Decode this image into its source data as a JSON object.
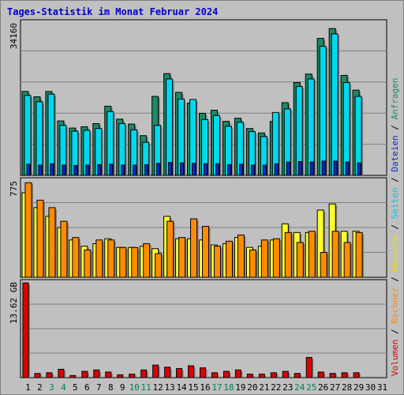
{
  "title": "Tages-Statistik im Monat Februar 2024",
  "colors": {
    "background": "#c0c0c0",
    "title": "#0000cc",
    "anfragen": "#1d8a66",
    "dateien": "#00d8f0",
    "seiten": "#0a2ad0",
    "besuche": "#ffff33",
    "rechner": "#ff8c00",
    "volumen": "#dd0000"
  },
  "right_legend": {
    "items": [
      {
        "label": "Volumen",
        "color": "#dd0000"
      },
      {
        "label": "Rechner",
        "color": "#ff8c00"
      },
      {
        "label": "Besuche",
        "color": "#e8e000"
      },
      {
        "label": "Seiten",
        "color": "#00c8e8"
      },
      {
        "label": "Dateien",
        "color": "#0a2ad0"
      },
      {
        "label": "Anfragen",
        "color": "#1d8a66"
      }
    ],
    "separator": "/"
  },
  "chart_data": [
    {
      "type": "bar",
      "name": "requests-panel",
      "ymax_label": "34160",
      "ylim": [
        0,
        34160
      ],
      "categories": [
        "1",
        "2",
        "3",
        "4",
        "5",
        "6",
        "7",
        "8",
        "9",
        "10",
        "11",
        "12",
        "13",
        "14",
        "15",
        "16",
        "17",
        "18",
        "19",
        "20",
        "21",
        "22",
        "23",
        "24",
        "25",
        "26",
        "27",
        "28",
        "29",
        "30",
        "31"
      ],
      "series": [
        {
          "name": "Anfragen",
          "values": [
            18800,
            17600,
            18800,
            12200,
            10600,
            10900,
            11600,
            15500,
            12600,
            11500,
            8900,
            17700,
            22800,
            18600,
            16200,
            13900,
            14600,
            12100,
            12800,
            10500,
            9500,
            12100,
            16300,
            20800,
            22700,
            30700,
            32900,
            22400,
            19100,
            0,
            0
          ]
        },
        {
          "name": "Dateien",
          "values": [
            17900,
            16500,
            18200,
            11200,
            9900,
            10100,
            10500,
            14300,
            11600,
            10200,
            7400,
            11200,
            21600,
            17100,
            17000,
            12500,
            13400,
            11000,
            11900,
            9800,
            8700,
            14100,
            14900,
            19900,
            21600,
            28900,
            31700,
            20800,
            17700,
            0,
            0
          ]
        },
        {
          "name": "Seiten",
          "values": [
            2500,
            2300,
            2600,
            2300,
            2200,
            2300,
            2400,
            2500,
            2300,
            2300,
            2400,
            2700,
            2900,
            2800,
            2700,
            2600,
            2600,
            2400,
            2500,
            2300,
            2300,
            2600,
            3000,
            3100,
            3000,
            3200,
            3200,
            3000,
            2800,
            0,
            0
          ]
        }
      ]
    },
    {
      "type": "bar",
      "name": "visits-panel",
      "ymax_label": "775",
      "ylim": [
        0,
        775
      ],
      "categories": [
        "1",
        "2",
        "3",
        "4",
        "5",
        "6",
        "7",
        "8",
        "9",
        "10",
        "11",
        "12",
        "13",
        "14",
        "15",
        "16",
        "17",
        "18",
        "19",
        "20",
        "21",
        "22",
        "23",
        "24",
        "25",
        "26",
        "27",
        "28",
        "29",
        "30",
        "31"
      ],
      "series": [
        {
          "name": "Besuche",
          "values": [
            680,
            560,
            490,
            400,
            300,
            250,
            270,
            310,
            240,
            240,
            250,
            230,
            490,
            310,
            310,
            300,
            260,
            270,
            320,
            240,
            250,
            300,
            430,
            360,
            360,
            540,
            590,
            370,
            370,
            0,
            0
          ]
        },
        {
          "name": "Rechner",
          "values": [
            760,
            620,
            560,
            450,
            320,
            220,
            300,
            300,
            240,
            240,
            270,
            190,
            450,
            320,
            470,
            410,
            250,
            290,
            340,
            220,
            300,
            310,
            360,
            280,
            370,
            200,
            370,
            280,
            360,
            0,
            0
          ]
        }
      ]
    },
    {
      "type": "bar",
      "name": "volume-panel",
      "ymax_label": "13.62 GB",
      "ylim": [
        0,
        13.62
      ],
      "categories": [
        "1",
        "2",
        "3",
        "4",
        "5",
        "6",
        "7",
        "8",
        "9",
        "10",
        "11",
        "12",
        "13",
        "14",
        "15",
        "16",
        "17",
        "18",
        "19",
        "20",
        "21",
        "22",
        "23",
        "24",
        "25",
        "26",
        "27",
        "28",
        "29",
        "30",
        "31"
      ],
      "series": [
        {
          "name": "Volumen",
          "values": [
            13.62,
            0.6,
            0.7,
            1.2,
            0.3,
            0.9,
            1.1,
            0.8,
            0.4,
            0.5,
            1.1,
            1.8,
            1.5,
            1.3,
            1.7,
            1.4,
            0.7,
            0.9,
            1.1,
            0.5,
            0.5,
            0.7,
            0.9,
            0.6,
            2.9,
            0.8,
            0.6,
            0.7,
            0.7,
            0,
            0
          ]
        }
      ]
    }
  ],
  "x_labels": [
    {
      "text": "1",
      "weekend": false
    },
    {
      "text": "2",
      "weekend": false
    },
    {
      "text": "3",
      "weekend": true
    },
    {
      "text": "4",
      "weekend": true
    },
    {
      "text": "5",
      "weekend": false
    },
    {
      "text": "6",
      "weekend": false
    },
    {
      "text": "7",
      "weekend": false
    },
    {
      "text": "8",
      "weekend": false
    },
    {
      "text": "9",
      "weekend": false
    },
    {
      "text": "10",
      "weekend": true
    },
    {
      "text": "11",
      "weekend": true
    },
    {
      "text": "12",
      "weekend": false
    },
    {
      "text": "13",
      "weekend": false
    },
    {
      "text": "14",
      "weekend": false
    },
    {
      "text": "15",
      "weekend": false
    },
    {
      "text": "16",
      "weekend": false
    },
    {
      "text": "17",
      "weekend": true
    },
    {
      "text": "18",
      "weekend": true
    },
    {
      "text": "19",
      "weekend": false
    },
    {
      "text": "20",
      "weekend": false
    },
    {
      "text": "21",
      "weekend": false
    },
    {
      "text": "22",
      "weekend": false
    },
    {
      "text": "23",
      "weekend": false
    },
    {
      "text": "24",
      "weekend": true
    },
    {
      "text": "25",
      "weekend": true
    },
    {
      "text": "26",
      "weekend": false
    },
    {
      "text": "27",
      "weekend": false
    },
    {
      "text": "28",
      "weekend": false
    },
    {
      "text": "29",
      "weekend": false
    },
    {
      "text": "30",
      "weekend": false
    },
    {
      "text": "31",
      "weekend": false
    }
  ],
  "x_label_colors": {
    "weekday": "#000000",
    "weekend": "#00805a"
  }
}
